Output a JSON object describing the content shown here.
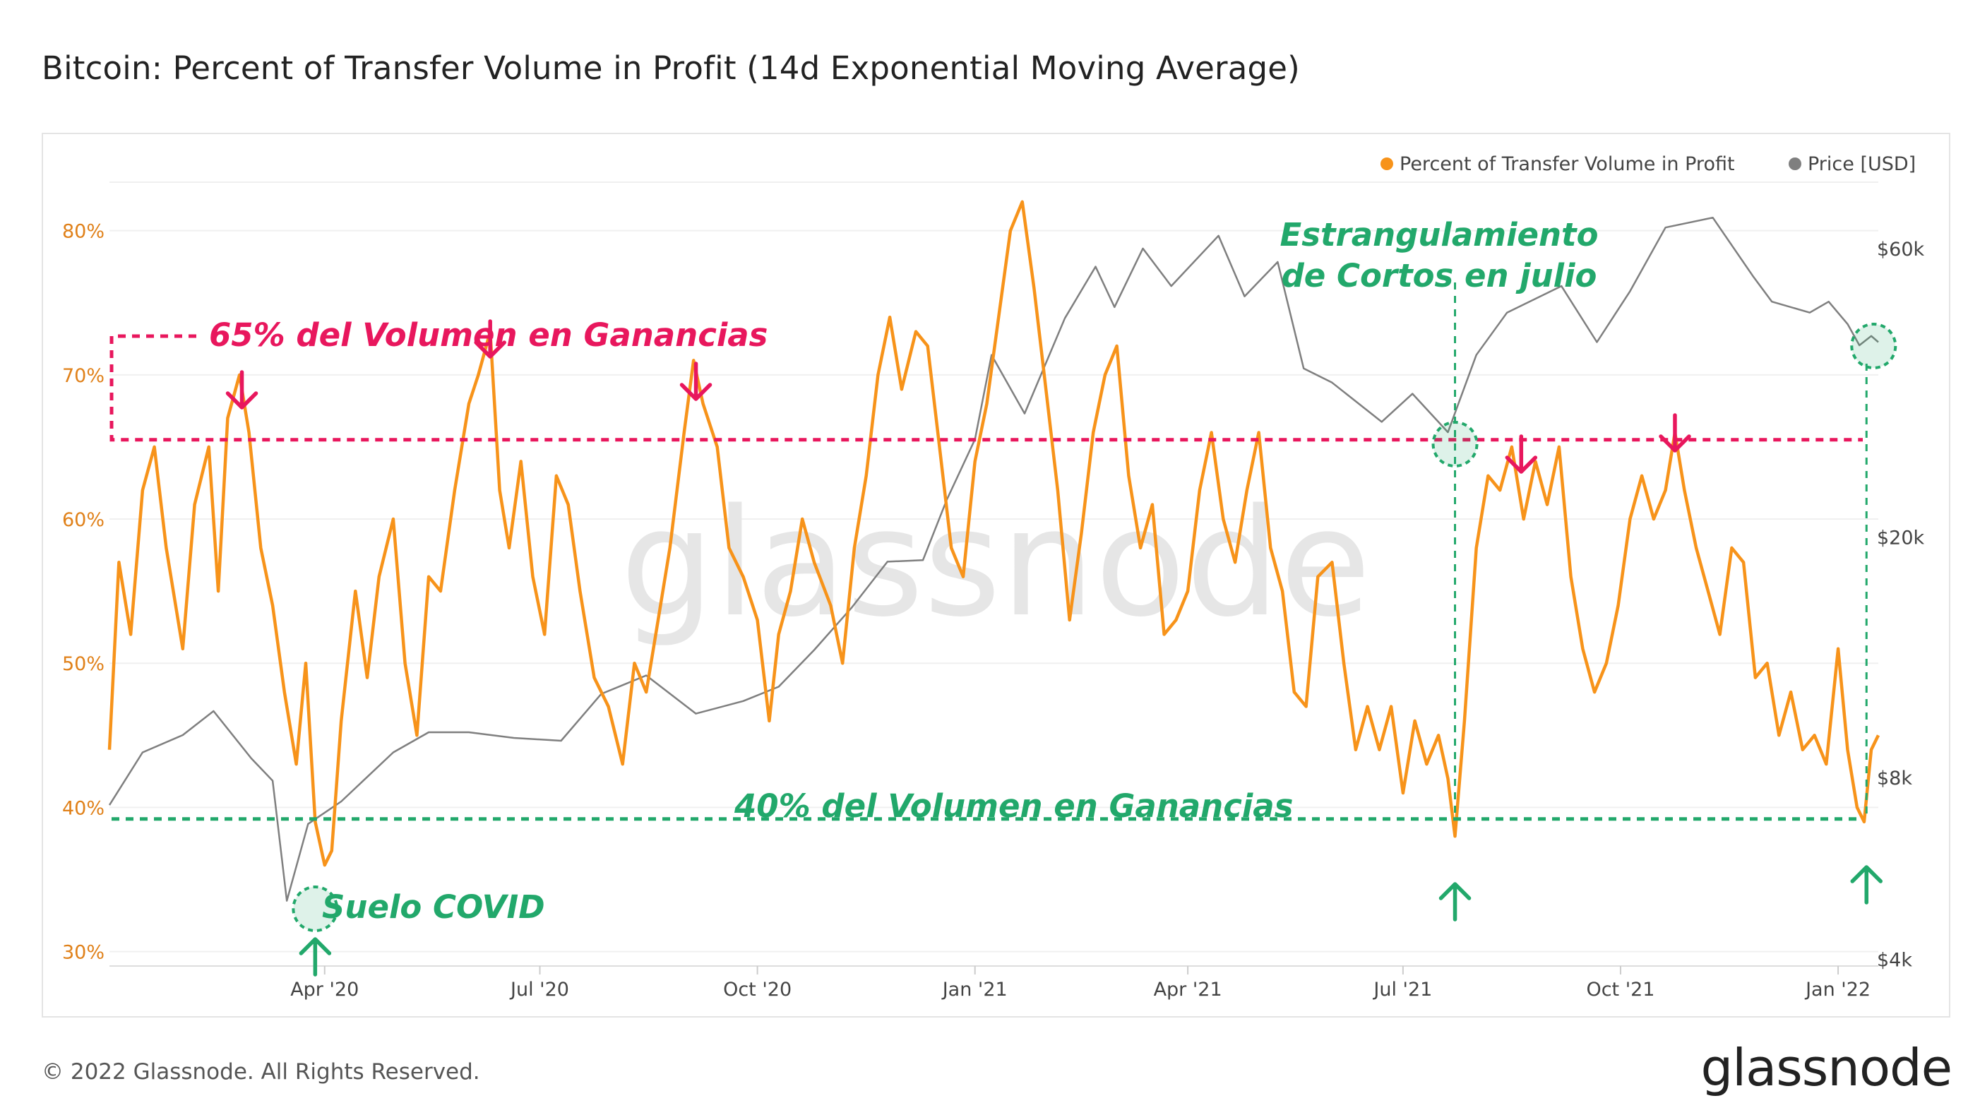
{
  "title": "Bitcoin: Percent of Transfer Volume in Profit (14d Exponential Moving Average)",
  "footer": "© 2022 Glassnode. All Rights Reserved.",
  "brand": "glassnode",
  "watermark": "glassnode",
  "colors": {
    "orange": "#f7931a",
    "orange_tick": "#e0811a",
    "gray_line": "#7f7f7f",
    "pink": "#e8175d",
    "green": "#22a86b"
  },
  "chart_data": {
    "type": "line",
    "title": "Bitcoin: Percent of Transfer Volume in Profit (14d Exponential Moving Average)",
    "x_range": [
      "2020-01-01",
      "2022-01-18"
    ],
    "x_ticks": [
      {
        "label": "Apr '20",
        "date": "2020-04-01"
      },
      {
        "label": "Jul '20",
        "date": "2020-07-01"
      },
      {
        "label": "Oct '20",
        "date": "2020-10-01"
      },
      {
        "label": "Jan '21",
        "date": "2021-01-01"
      },
      {
        "label": "Apr '21",
        "date": "2021-04-01"
      },
      {
        "label": "Jul '21",
        "date": "2021-07-01"
      },
      {
        "label": "Oct '21",
        "date": "2021-10-01"
      },
      {
        "label": "Jan '22",
        "date": "2022-01-01"
      }
    ],
    "y_left": {
      "label": "",
      "ticks": [
        "30%",
        "40%",
        "50%",
        "60%",
        "70%",
        "80%"
      ],
      "values": [
        30,
        40,
        50,
        60,
        70,
        80
      ],
      "range": [
        29,
        84
      ]
    },
    "y_right": {
      "label": "",
      "scale": "log",
      "ticks": [
        "$4k",
        "$8k",
        "$20k",
        "$60k"
      ],
      "values": [
        4000,
        8000,
        20000,
        60000
      ],
      "range": [
        3900,
        80000
      ]
    },
    "legend_position": "top-right",
    "legend": [
      "Percent of Transfer Volume in Profit",
      "Price [USD]"
    ],
    "series": [
      {
        "name": "Percent of Transfer Volume in Profit",
        "axis": "left",
        "points": [
          [
            "2020-01-01",
            44
          ],
          [
            "2020-01-05",
            57
          ],
          [
            "2020-01-10",
            52
          ],
          [
            "2020-01-15",
            62
          ],
          [
            "2020-01-20",
            65
          ],
          [
            "2020-01-25",
            58
          ],
          [
            "2020-02-01",
            51
          ],
          [
            "2020-02-06",
            61
          ],
          [
            "2020-02-12",
            65
          ],
          [
            "2020-02-16",
            55
          ],
          [
            "2020-02-20",
            67
          ],
          [
            "2020-02-25",
            70
          ],
          [
            "2020-02-29",
            66
          ],
          [
            "2020-03-05",
            58
          ],
          [
            "2020-03-10",
            54
          ],
          [
            "2020-03-15",
            48
          ],
          [
            "2020-03-20",
            43
          ],
          [
            "2020-03-24",
            50
          ],
          [
            "2020-03-28",
            39
          ],
          [
            "2020-04-01",
            36
          ],
          [
            "2020-04-04",
            37
          ],
          [
            "2020-04-08",
            46
          ],
          [
            "2020-04-14",
            55
          ],
          [
            "2020-04-19",
            49
          ],
          [
            "2020-04-24",
            56
          ],
          [
            "2020-04-30",
            60
          ],
          [
            "2020-05-05",
            50
          ],
          [
            "2020-05-10",
            45
          ],
          [
            "2020-05-15",
            56
          ],
          [
            "2020-05-20",
            55
          ],
          [
            "2020-05-26",
            62
          ],
          [
            "2020-06-01",
            68
          ],
          [
            "2020-06-05",
            70
          ],
          [
            "2020-06-10",
            73
          ],
          [
            "2020-06-14",
            62
          ],
          [
            "2020-06-18",
            58
          ],
          [
            "2020-06-23",
            64
          ],
          [
            "2020-06-28",
            56
          ],
          [
            "2020-07-03",
            52
          ],
          [
            "2020-07-08",
            63
          ],
          [
            "2020-07-13",
            61
          ],
          [
            "2020-07-18",
            55
          ],
          [
            "2020-07-24",
            49
          ],
          [
            "2020-07-30",
            47
          ],
          [
            "2020-08-05",
            43
          ],
          [
            "2020-08-10",
            50
          ],
          [
            "2020-08-15",
            48
          ],
          [
            "2020-08-20",
            53
          ],
          [
            "2020-08-25",
            58
          ],
          [
            "2020-08-31",
            66
          ],
          [
            "2020-09-04",
            71
          ],
          [
            "2020-09-08",
            68
          ],
          [
            "2020-09-14",
            65
          ],
          [
            "2020-09-19",
            58
          ],
          [
            "2020-09-25",
            56
          ],
          [
            "2020-10-01",
            53
          ],
          [
            "2020-10-06",
            46
          ],
          [
            "2020-10-10",
            52
          ],
          [
            "2020-10-15",
            55
          ],
          [
            "2020-10-20",
            60
          ],
          [
            "2020-10-25",
            57
          ],
          [
            "2020-11-01",
            54
          ],
          [
            "2020-11-06",
            50
          ],
          [
            "2020-11-11",
            58
          ],
          [
            "2020-11-16",
            63
          ],
          [
            "2020-11-21",
            70
          ],
          [
            "2020-11-26",
            74
          ],
          [
            "2020-12-01",
            69
          ],
          [
            "2020-12-07",
            73
          ],
          [
            "2020-12-12",
            72
          ],
          [
            "2020-12-17",
            65
          ],
          [
            "2020-12-22",
            58
          ],
          [
            "2020-12-27",
            56
          ],
          [
            "2021-01-01",
            64
          ],
          [
            "2021-01-06",
            68
          ],
          [
            "2021-01-11",
            74
          ],
          [
            "2021-01-16",
            80
          ],
          [
            "2021-01-21",
            82
          ],
          [
            "2021-01-26",
            76
          ],
          [
            "2021-01-31",
            69
          ],
          [
            "2021-02-05",
            62
          ],
          [
            "2021-02-10",
            53
          ],
          [
            "2021-02-15",
            59
          ],
          [
            "2021-02-20",
            66
          ],
          [
            "2021-02-25",
            70
          ],
          [
            "2021-03-02",
            72
          ],
          [
            "2021-03-07",
            63
          ],
          [
            "2021-03-12",
            58
          ],
          [
            "2021-03-17",
            61
          ],
          [
            "2021-03-22",
            52
          ],
          [
            "2021-03-27",
            53
          ],
          [
            "2021-04-01",
            55
          ],
          [
            "2021-04-06",
            62
          ],
          [
            "2021-04-11",
            66
          ],
          [
            "2021-04-16",
            60
          ],
          [
            "2021-04-21",
            57
          ],
          [
            "2021-04-26",
            62
          ],
          [
            "2021-05-01",
            66
          ],
          [
            "2021-05-06",
            58
          ],
          [
            "2021-05-11",
            55
          ],
          [
            "2021-05-16",
            48
          ],
          [
            "2021-05-21",
            47
          ],
          [
            "2021-05-26",
            56
          ],
          [
            "2021-06-01",
            57
          ],
          [
            "2021-06-06",
            50
          ],
          [
            "2021-06-11",
            44
          ],
          [
            "2021-06-16",
            47
          ],
          [
            "2021-06-21",
            44
          ],
          [
            "2021-06-26",
            47
          ],
          [
            "2021-07-01",
            41
          ],
          [
            "2021-07-06",
            46
          ],
          [
            "2021-07-11",
            43
          ],
          [
            "2021-07-16",
            45
          ],
          [
            "2021-07-20",
            42
          ],
          [
            "2021-07-23",
            38
          ],
          [
            "2021-07-27",
            46
          ],
          [
            "2021-08-01",
            58
          ],
          [
            "2021-08-06",
            63
          ],
          [
            "2021-08-11",
            62
          ],
          [
            "2021-08-16",
            65
          ],
          [
            "2021-08-21",
            60
          ],
          [
            "2021-08-26",
            64
          ],
          [
            "2021-08-31",
            61
          ],
          [
            "2021-09-05",
            65
          ],
          [
            "2021-09-10",
            56
          ],
          [
            "2021-09-15",
            51
          ],
          [
            "2021-09-20",
            48
          ],
          [
            "2021-09-25",
            50
          ],
          [
            "2021-09-30",
            54
          ],
          [
            "2021-10-05",
            60
          ],
          [
            "2021-10-10",
            63
          ],
          [
            "2021-10-15",
            60
          ],
          [
            "2021-10-20",
            62
          ],
          [
            "2021-10-24",
            66
          ],
          [
            "2021-10-28",
            62
          ],
          [
            "2021-11-02",
            58
          ],
          [
            "2021-11-07",
            55
          ],
          [
            "2021-11-12",
            52
          ],
          [
            "2021-11-17",
            58
          ],
          [
            "2021-11-22",
            57
          ],
          [
            "2021-11-27",
            49
          ],
          [
            "2021-12-02",
            50
          ],
          [
            "2021-12-07",
            45
          ],
          [
            "2021-12-12",
            48
          ],
          [
            "2021-12-17",
            44
          ],
          [
            "2021-12-22",
            45
          ],
          [
            "2021-12-27",
            43
          ],
          [
            "2022-01-01",
            51
          ],
          [
            "2022-01-05",
            44
          ],
          [
            "2022-01-09",
            40
          ],
          [
            "2022-01-12",
            39
          ],
          [
            "2022-01-15",
            44
          ],
          [
            "2022-01-18",
            45
          ]
        ]
      },
      {
        "name": "Price [USD]",
        "axis": "right",
        "points": [
          [
            "2020-01-01",
            7200
          ],
          [
            "2020-01-15",
            8800
          ],
          [
            "2020-02-01",
            9400
          ],
          [
            "2020-02-14",
            10300
          ],
          [
            "2020-03-01",
            8600
          ],
          [
            "2020-03-10",
            7900
          ],
          [
            "2020-03-16",
            5000
          ],
          [
            "2020-03-25",
            6700
          ],
          [
            "2020-04-08",
            7300
          ],
          [
            "2020-04-30",
            8800
          ],
          [
            "2020-05-15",
            9500
          ],
          [
            "2020-06-01",
            9500
          ],
          [
            "2020-06-20",
            9300
          ],
          [
            "2020-07-10",
            9200
          ],
          [
            "2020-07-27",
            11000
          ],
          [
            "2020-08-15",
            11800
          ],
          [
            "2020-09-05",
            10200
          ],
          [
            "2020-09-25",
            10700
          ],
          [
            "2020-10-10",
            11300
          ],
          [
            "2020-10-25",
            13000
          ],
          [
            "2020-11-10",
            15300
          ],
          [
            "2020-11-25",
            18200
          ],
          [
            "2020-12-10",
            18300
          ],
          [
            "2020-12-20",
            23000
          ],
          [
            "2021-01-01",
            29000
          ],
          [
            "2021-01-08",
            40000
          ],
          [
            "2021-01-22",
            32000
          ],
          [
            "2021-02-08",
            46000
          ],
          [
            "2021-02-21",
            56000
          ],
          [
            "2021-03-01",
            48000
          ],
          [
            "2021-03-13",
            60000
          ],
          [
            "2021-03-25",
            52000
          ],
          [
            "2021-04-14",
            63000
          ],
          [
            "2021-04-25",
            50000
          ],
          [
            "2021-05-09",
            57000
          ],
          [
            "2021-05-20",
            38000
          ],
          [
            "2021-06-01",
            36000
          ],
          [
            "2021-06-22",
            31000
          ],
          [
            "2021-07-05",
            34500
          ],
          [
            "2021-07-20",
            29800
          ],
          [
            "2021-08-01",
            40000
          ],
          [
            "2021-08-14",
            47000
          ],
          [
            "2021-09-06",
            52000
          ],
          [
            "2021-09-21",
            42000
          ],
          [
            "2021-10-05",
            51000
          ],
          [
            "2021-10-20",
            65000
          ],
          [
            "2021-11-09",
            67500
          ],
          [
            "2021-11-26",
            54000
          ],
          [
            "2021-12-04",
            49000
          ],
          [
            "2021-12-20",
            47000
          ],
          [
            "2021-12-28",
            49000
          ],
          [
            "2022-01-05",
            45000
          ],
          [
            "2022-01-10",
            41500
          ],
          [
            "2022-01-15",
            43000
          ],
          [
            "2022-01-18",
            42000
          ]
        ]
      }
    ],
    "annotations": {
      "pink_line_label": "65% del Volumen en Ganancias",
      "pink_line_value": 65.5,
      "green_line_label": "40% del Volumen en Ganancias",
      "green_line_value": 39.2,
      "covid_label": "Suelo COVID",
      "july_label_line1": "Estrangulamiento",
      "july_label_line2": "de Cortos en julio",
      "down_arrow_dates": [
        "2020-02-26",
        "2020-06-10",
        "2020-09-05",
        "2021-08-20",
        "2021-10-24"
      ],
      "up_arrow_dates": [
        "2020-03-28",
        "2021-07-23",
        "2022-01-13"
      ],
      "circle_dates": [
        "2020-03-28",
        "2021-07-23",
        "2022-01-16"
      ],
      "vertical_line_dates": [
        "2021-07-23",
        "2022-01-13"
      ]
    }
  }
}
